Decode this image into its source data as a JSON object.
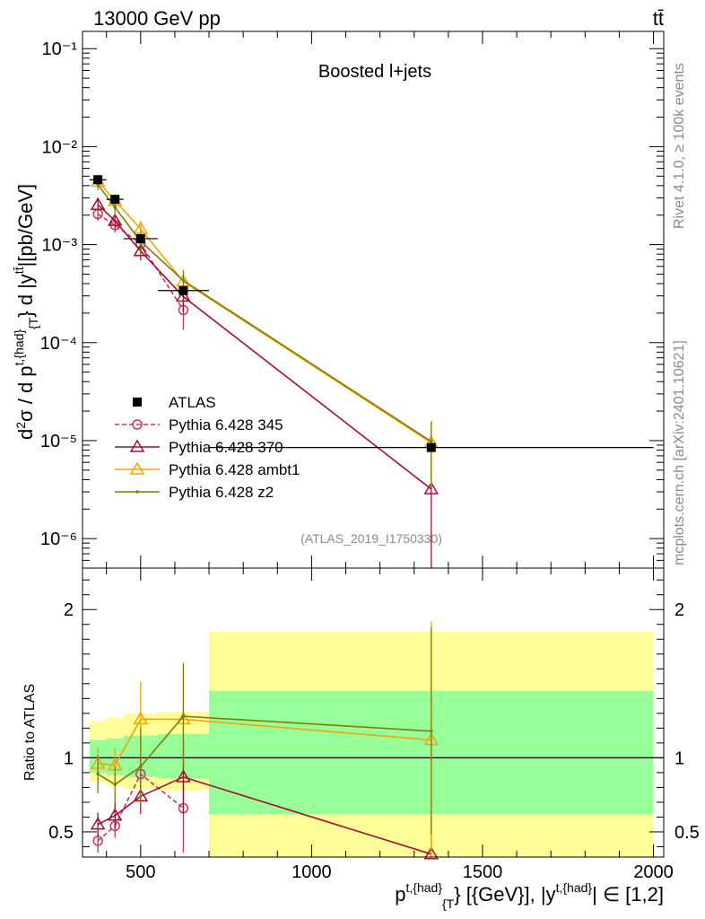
{
  "header": {
    "left": "13000 GeV pp",
    "right": "tt̄"
  },
  "side_text": {
    "rivet": "Rivet 4.1.0, ≥ 100k events",
    "mcplots": "mcplots.cern.ch [arXiv:2401.10621]"
  },
  "chart_data": [
    {
      "type": "line",
      "panel": "main",
      "title": "Boosted l+jets",
      "watermark": "(ATLAS_2019_I1750330)",
      "ylabel": "d²σ / d p^{t,{had}}_{T} d |y^{t̄t}| [pb/GeV]",
      "yscale": "log",
      "ylim": [
        5e-07,
        0.15
      ],
      "xlim": [
        330,
        2030
      ],
      "ytick_labels": [
        "10⁻⁶",
        "10⁻⁵",
        "10⁻⁴",
        "10⁻³",
        "10⁻²",
        "10⁻¹"
      ],
      "data": {
        "name": "ATLAS",
        "x": [
          375,
          425,
          500,
          625,
          1350
        ],
        "xerr": [
          [
            350,
            400
          ],
          [
            400,
            450
          ],
          [
            450,
            550
          ],
          [
            550,
            700
          ],
          [
            700,
            2000
          ]
        ],
        "y": [
          0.0046,
          0.0029,
          0.00115,
          0.00034,
          8.5e-06
        ]
      },
      "series": [
        {
          "name": "Pythia 6.428 345",
          "color": "#c0395b",
          "marker": "circle",
          "dash": true,
          "x": [
            375,
            425,
            500,
            625
          ],
          "y": [
            0.00205,
            0.00158,
            0.00102,
            0.000215
          ],
          "yerr": [
            0.0003,
            0.00025,
            0.00018,
            8e-05
          ]
        },
        {
          "name": "Pythia 6.428 370",
          "color": "#a0102f",
          "marker": "triangle",
          "dash": false,
          "x": [
            375,
            425,
            500,
            625,
            1350
          ],
          "y": [
            0.00255,
            0.00175,
            0.00086,
            0.000295,
            3.2e-06
          ],
          "yerr": [
            0.00035,
            0.00028,
            0.00017,
            9e-05,
            3e-06
          ]
        },
        {
          "name": "Pythia 6.428 ambt1",
          "color": "#f0a500",
          "marker": "triangle",
          "dash": false,
          "x": [
            375,
            425,
            500,
            625,
            1350
          ],
          "y": [
            0.0044,
            0.0028,
            0.00145,
            0.00042,
            9.5e-06
          ],
          "yerr": [
            0.0005,
            0.0004,
            0.0003,
            0.00011,
            6e-06
          ]
        },
        {
          "name": "Pythia 6.428 z2",
          "color": "#7d7d0a",
          "marker": "dot",
          "dash": false,
          "x": [
            375,
            425,
            500,
            625,
            1350
          ],
          "y": [
            0.0041,
            0.0024,
            0.00108,
            0.00043,
            9.8e-06
          ],
          "yerr": [
            0.0005,
            0.0004,
            0.0003,
            0.00012,
            6e-06
          ]
        }
      ]
    },
    {
      "type": "line",
      "panel": "ratio",
      "ylabel": "Ratio to ATLAS",
      "ylim": [
        0.33,
        2.28
      ],
      "yticks": [
        0.5,
        1,
        2
      ],
      "ytick_labels": [
        "0.5",
        "1",
        "2"
      ],
      "xticks": [
        500,
        1000,
        1500,
        2000
      ],
      "xtick_labels": [
        "500",
        "1000",
        "1500",
        "2000"
      ],
      "xlabel": "p^{t,{had}}_{T} [{GeV}], |y^{t,{had}}| ∈ [1,2]",
      "bands": {
        "edges": [
          350,
          400,
          450,
          550,
          700,
          2000
        ],
        "yellow": [
          [
            0.84,
            1.25
          ],
          [
            0.81,
            1.27
          ],
          [
            0.79,
            1.3
          ],
          [
            0.78,
            1.31
          ],
          [
            0.33,
            1.85
          ]
        ],
        "green": [
          [
            0.9,
            1.12
          ],
          [
            0.88,
            1.13
          ],
          [
            0.87,
            1.15
          ],
          [
            0.86,
            1.16
          ],
          [
            0.62,
            1.45
          ]
        ]
      },
      "series": [
        {
          "name": "Pythia 6.428 345",
          "color": "#c0395b",
          "marker": "circle",
          "dash": true,
          "x": [
            375,
            425,
            500,
            625
          ],
          "y": [
            0.44,
            0.54,
            0.89,
            0.66
          ],
          "yerr": [
            0.08,
            0.08,
            0.14,
            0.3
          ]
        },
        {
          "name": "Pythia 6.428 370",
          "color": "#a0102f",
          "marker": "triangle",
          "dash": false,
          "x": [
            375,
            425,
            500,
            625,
            1350
          ],
          "y": [
            0.55,
            0.61,
            0.74,
            0.87,
            0.35
          ],
          "yerr": [
            0.08,
            0.09,
            0.12,
            0.25,
            0.3
          ]
        },
        {
          "name": "Pythia 6.428 ambt1",
          "color": "#f0a500",
          "marker": "triangle",
          "dash": false,
          "x": [
            375,
            425,
            500,
            625,
            1350
          ],
          "y": [
            0.96,
            0.95,
            1.26,
            1.26,
            1.12
          ],
          "yerr": [
            0.12,
            0.12,
            0.25,
            0.33,
            0.8
          ]
        },
        {
          "name": "Pythia 6.428 z2",
          "color": "#7d7d0a",
          "marker": "dot",
          "dash": false,
          "x": [
            375,
            425,
            500,
            625,
            1350
          ],
          "y": [
            0.89,
            0.82,
            0.94,
            1.28,
            1.18
          ],
          "yerr": [
            0.13,
            0.12,
            0.26,
            0.36,
            0.7
          ]
        }
      ]
    }
  ],
  "legend": {
    "entries": [
      {
        "label": "ATLAS",
        "marker": "square",
        "color": "#000000"
      },
      {
        "label": "Pythia 6.428 345",
        "marker": "circle",
        "color": "#c0395b",
        "dash": true
      },
      {
        "label": "Pythia 6.428 370",
        "marker": "triangle",
        "color": "#a0102f",
        "dash": false
      },
      {
        "label": "Pythia 6.428 ambt1",
        "marker": "triangle",
        "color": "#f0a500",
        "dash": false
      },
      {
        "label": "Pythia 6.428 z2",
        "marker": "dot",
        "color": "#7d7d0a",
        "dash": false
      }
    ]
  },
  "colors": {
    "band_yellow": "#ffff99",
    "band_green": "#99ff99"
  }
}
